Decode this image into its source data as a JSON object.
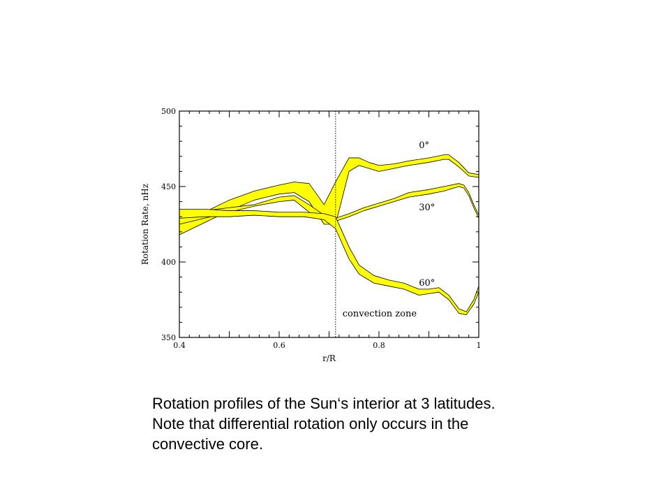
{
  "chart_data": {
    "type": "area",
    "xlabel": "r/R",
    "ylabel": "Rotation Rate, nHz",
    "xlim": [
      0.4,
      1.0
    ],
    "ylim": [
      350,
      500
    ],
    "xticks": [
      0.4,
      0.6,
      0.8,
      1
    ],
    "xtick_labels": [
      "0.4",
      "0.6",
      "0.8",
      "1"
    ],
    "yticks": [
      350,
      400,
      450,
      500
    ],
    "ytick_labels": [
      "350",
      "400",
      "450",
      "500"
    ],
    "grid": false,
    "band_color": "#ffff00",
    "vline": {
      "x": 0.713,
      "style": "dotted",
      "label": "convection zone"
    },
    "series": [
      {
        "name": "0°",
        "x": [
          0.4,
          0.45,
          0.5,
          0.55,
          0.6,
          0.63,
          0.66,
          0.69,
          0.713,
          0.74,
          0.76,
          0.78,
          0.8,
          0.83,
          0.86,
          0.9,
          0.93,
          0.94,
          0.96,
          0.98,
          1.0
        ],
        "lower": [
          418,
          426,
          434,
          441,
          445,
          446,
          440,
          425,
          425,
          460,
          464,
          462,
          460,
          462,
          464,
          466,
          468,
          468,
          463,
          457,
          456
        ],
        "upper": [
          427,
          433,
          441,
          447,
          451,
          453,
          452,
          438,
          453,
          469,
          469,
          466,
          464,
          465,
          467,
          469,
          471,
          471,
          466,
          459,
          458
        ]
      },
      {
        "name": "30°",
        "x": [
          0.4,
          0.45,
          0.5,
          0.55,
          0.6,
          0.63,
          0.66,
          0.69,
          0.713,
          0.74,
          0.77,
          0.8,
          0.83,
          0.86,
          0.9,
          0.93,
          0.96,
          0.97,
          0.98,
          0.99,
          1.0
        ],
        "lower": [
          425,
          429,
          433,
          437,
          440,
          441,
          433,
          428,
          427,
          430,
          434,
          437,
          440,
          443,
          445,
          447,
          450,
          449,
          444,
          436,
          429
        ],
        "upper": [
          431,
          434,
          436,
          438,
          443,
          444,
          438,
          431,
          429,
          432,
          436,
          439,
          442,
          446,
          448,
          450,
          452,
          451,
          446,
          438,
          431
        ]
      },
      {
        "name": "60°",
        "x": [
          0.4,
          0.45,
          0.5,
          0.55,
          0.6,
          0.65,
          0.69,
          0.713,
          0.74,
          0.76,
          0.79,
          0.82,
          0.85,
          0.88,
          0.9,
          0.92,
          0.94,
          0.96,
          0.975,
          0.99,
          1.0
        ],
        "lower": [
          429,
          430,
          430,
          431,
          430,
          430,
          428,
          422,
          402,
          392,
          386,
          384,
          382,
          378,
          379,
          380,
          375,
          366,
          365,
          372,
          380
        ],
        "upper": [
          435,
          435,
          434,
          434,
          433,
          433,
          432,
          430,
          410,
          398,
          391,
          388,
          386,
          382,
          382,
          383,
          378,
          369,
          367,
          375,
          384
        ]
      }
    ]
  },
  "caption": {
    "line1": "Rotation profiles of the Sun‘s interior at  3 latitudes.",
    "line2": "Note that differential rotation only occurs in the",
    "line3": "convective core."
  }
}
